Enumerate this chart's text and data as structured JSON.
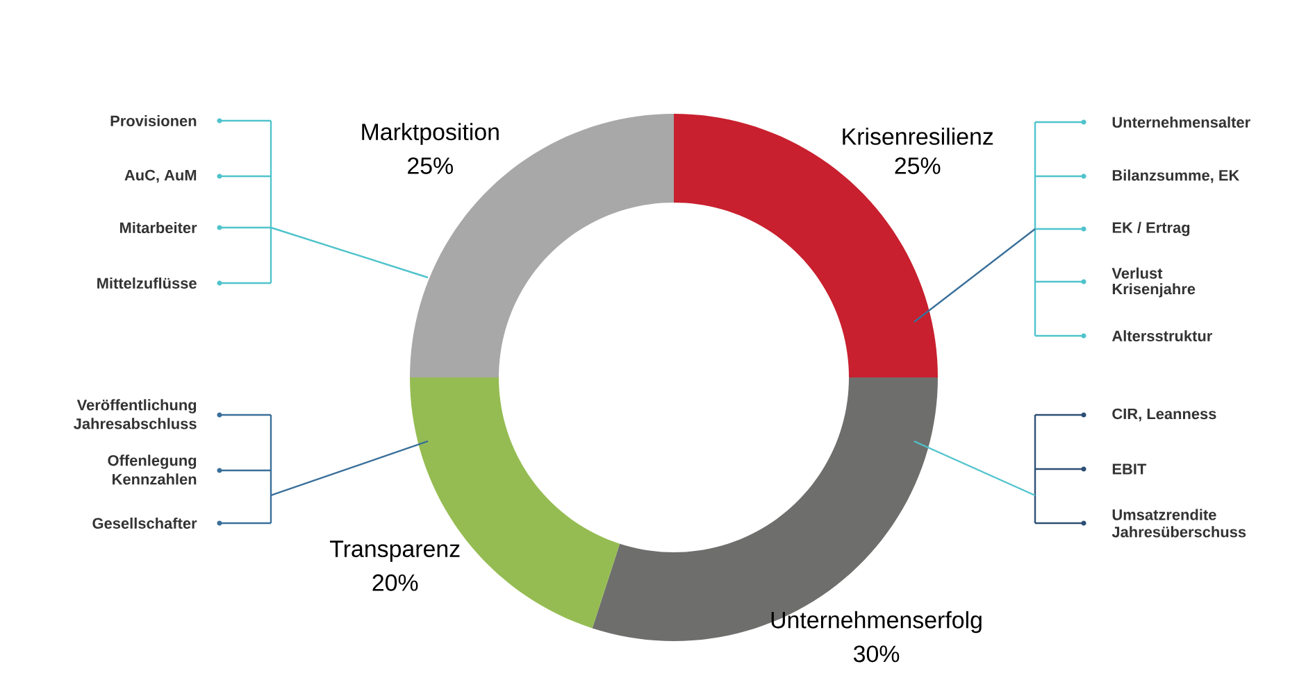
{
  "chart_data": {
    "type": "donut",
    "categories": [
      "Krisenresilienz",
      "Unternehmenserfolg",
      "Transparenz",
      "Marktposition"
    ],
    "values": [
      25,
      30,
      20,
      25
    ],
    "value_labels": [
      "25%",
      "30%",
      "20%",
      "25%"
    ],
    "colors": [
      "#c8202e",
      "#6e6f6d",
      "#95bc52",
      "#a8a8a8"
    ],
    "annotations": [
      "Provisionen",
      "AuC, AuM",
      "Mitarbeiter",
      "Mittelzuflüsse",
      "Veröffentlichung",
      "Jahresabschluss",
      "Offenlegung",
      "Kennzahlen",
      "Gesellschafter",
      "Unternehmensalter",
      "Bilanzsumme, EK",
      "EK / Ertrag",
      "Verlust",
      "Krisenjahre",
      "Altersstruktur",
      "CIR, Leanness",
      "EBIT",
      "Umsatzrendite",
      "Jahresüberschuss"
    ]
  }
}
